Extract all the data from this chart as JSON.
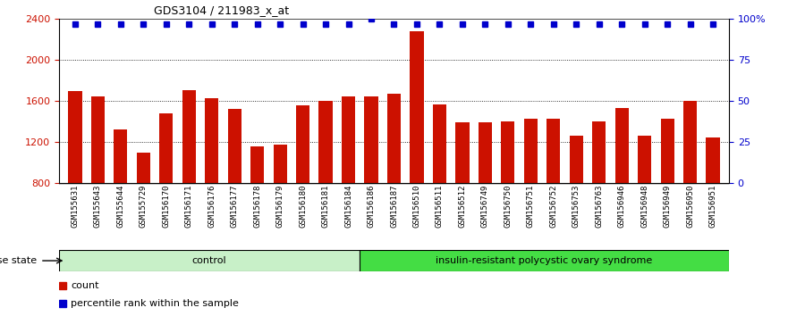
{
  "title": "GDS3104 / 211983_x_at",
  "samples": [
    "GSM155631",
    "GSM155643",
    "GSM155644",
    "GSM155729",
    "GSM156170",
    "GSM156171",
    "GSM156176",
    "GSM156177",
    "GSM156178",
    "GSM156179",
    "GSM156180",
    "GSM156181",
    "GSM156184",
    "GSM156186",
    "GSM156187",
    "GSM156510",
    "GSM156511",
    "GSM156512",
    "GSM156749",
    "GSM156750",
    "GSM156751",
    "GSM156752",
    "GSM156753",
    "GSM156763",
    "GSM156946",
    "GSM156948",
    "GSM156949",
    "GSM156950",
    "GSM156951"
  ],
  "counts": [
    1700,
    1650,
    1320,
    1100,
    1480,
    1710,
    1630,
    1520,
    1160,
    1175,
    1560,
    1600,
    1650,
    1650,
    1670,
    2280,
    1570,
    1390,
    1390,
    1400,
    1430,
    1430,
    1260,
    1400,
    1530,
    1260,
    1430,
    1600,
    1250
  ],
  "percentile": [
    97,
    97,
    97,
    97,
    97,
    97,
    97,
    97,
    97,
    97,
    97,
    97,
    97,
    100,
    97,
    97,
    97,
    97,
    97,
    97,
    97,
    97,
    97,
    97,
    97,
    97,
    97,
    97,
    97
  ],
  "control_count": 13,
  "bar_color": "#cc1100",
  "dot_color": "#0000cc",
  "ylim_left": [
    800,
    2400
  ],
  "yticks_left": [
    800,
    1200,
    1600,
    2000,
    2400
  ],
  "ylim_right": [
    0,
    100
  ],
  "yticks_right": [
    0,
    25,
    50,
    75,
    100
  ],
  "group_labels": [
    "control",
    "insulin-resistant polycystic ovary syndrome"
  ],
  "ctrl_color": "#c8f0c8",
  "disease_color": "#44dd44",
  "disease_state_label": "disease state",
  "legend_count_label": "count",
  "legend_pct_label": "percentile rank within the sample",
  "background_color": "#ffffff"
}
